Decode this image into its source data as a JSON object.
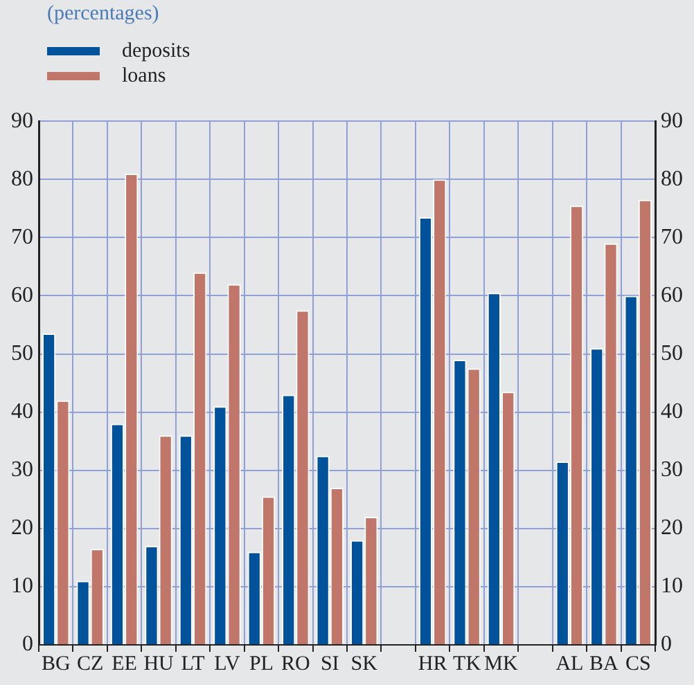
{
  "chart_data": {
    "type": "bar",
    "subtitle": "(percentages)",
    "categories": [
      "BG",
      "CZ",
      "EE",
      "HU",
      "LT",
      "LV",
      "PL",
      "RO",
      "SI",
      "SK",
      null,
      "HR",
      "TK",
      "MK",
      null,
      "AL",
      "BA",
      "CS"
    ],
    "series": [
      {
        "name": "deposits",
        "color": "#00529b",
        "values": [
          53.5,
          11,
          38,
          17,
          36,
          41,
          16,
          43,
          32.5,
          18,
          null,
          73.5,
          49,
          60.5,
          null,
          31.5,
          51,
          60
        ]
      },
      {
        "name": "loans",
        "color": "#c0776a",
        "values": [
          42,
          16.5,
          81,
          36,
          64,
          62,
          25.5,
          57.5,
          27,
          22,
          null,
          80,
          47.5,
          43.5,
          null,
          75.5,
          69,
          76.5
        ]
      }
    ],
    "ylim": [
      0,
      90
    ],
    "yticks": [
      0,
      10,
      20,
      30,
      40,
      50,
      60,
      70,
      80,
      90
    ],
    "y2lim": [
      0,
      90
    ],
    "y2ticks": [
      0,
      10,
      20,
      30,
      40,
      50,
      60,
      70,
      80,
      90
    ],
    "grid": true,
    "legend": "top left"
  }
}
